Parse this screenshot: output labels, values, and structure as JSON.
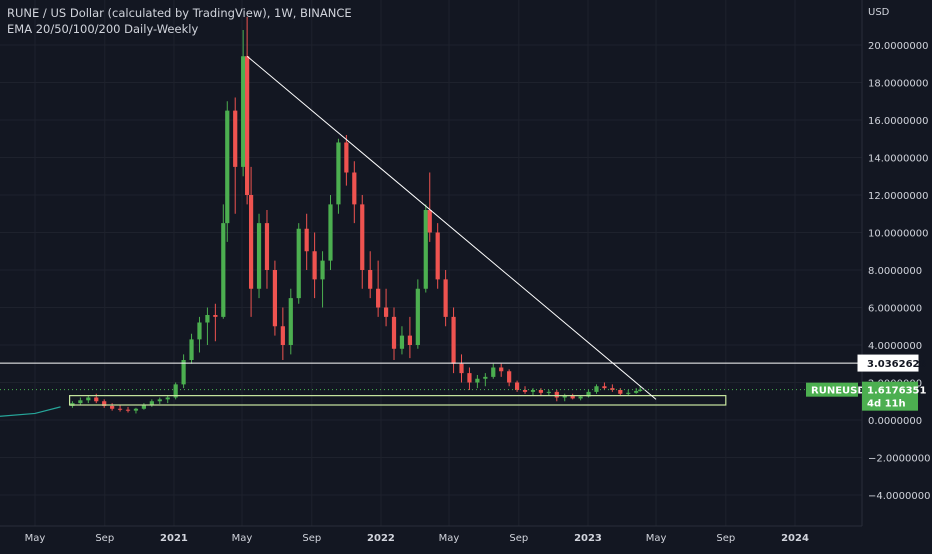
{
  "header": {
    "title": "RUNE / US Dollar (calculated by TradingView), 1W, BINANCE",
    "indicator": "EMA 20/50/100/200 Daily-Weekly"
  },
  "colors": {
    "background": "#131722",
    "grid": "#1e222d",
    "up": "#26a69a",
    "up_candle": "#4caf50",
    "down": "#ef5350",
    "trendline": "#ffffff",
    "support_box": "#c8e6a0",
    "price_tag": "#4caf50"
  },
  "chart_data": {
    "type": "candlestick",
    "symbol": "RUNEUSD",
    "interval": "1W",
    "y_axis": {
      "unit": "USD",
      "ylim": [
        -5.2,
        21.7
      ],
      "ticks": [
        "20.0000000",
        "18.0000000",
        "16.0000000",
        "14.0000000",
        "12.0000000",
        "10.0000000",
        "8.0000000",
        "6.0000000",
        "4.0000000",
        "2.0000000",
        "0.0000000",
        "−2.0000000",
        "−4.0000000"
      ],
      "tick_values": [
        20,
        18,
        16,
        14,
        12,
        10,
        8,
        6,
        4,
        2,
        0,
        -2,
        -4
      ]
    },
    "x_axis": {
      "ticks": [
        "May",
        "Sep",
        "2021",
        "May",
        "Sep",
        "2022",
        "May",
        "Sep",
        "2023",
        "May",
        "Sep",
        "2024"
      ],
      "tick_dates": [
        "2020-05-01",
        "2020-09-01",
        "2021-01-01",
        "2021-05-01",
        "2021-09-01",
        "2022-01-01",
        "2022-05-01",
        "2022-09-01",
        "2023-01-01",
        "2023-05-01",
        "2023-09-01",
        "2024-01-01"
      ],
      "bold_ticks": [
        "2021",
        "2022",
        "2023",
        "2024"
      ],
      "range": [
        "2020-04-01",
        "2024-06-15"
      ]
    },
    "grid": true,
    "horizontal_level": {
      "value": 3.0362626,
      "label": "3.0362626"
    },
    "current_price": {
      "value": 1.6176351,
      "label": "1.6176351",
      "symbol": "RUNEUSD",
      "countdown": "4d 11h"
    },
    "trendline": {
      "start": {
        "date": "2021-05-10",
        "value": 19.4
      },
      "end": {
        "date": "2023-05-01",
        "value": 1.1
      }
    },
    "support_zone": {
      "x_start": "2020-07-01",
      "x_end": "2023-09-01",
      "y_low": 0.8,
      "y_high": 1.3
    },
    "line_segment": [
      {
        "date": "2019-12-15",
        "value": 0.1
      },
      {
        "date": "2020-03-01",
        "value": 0.2
      },
      {
        "date": "2020-05-01",
        "value": 0.35
      },
      {
        "date": "2020-06-15",
        "value": 0.7
      }
    ],
    "candles": [
      {
        "date": "2020-07-06",
        "o": 0.75,
        "h": 1.0,
        "l": 0.65,
        "c": 0.9
      },
      {
        "date": "2020-07-20",
        "o": 0.9,
        "h": 1.2,
        "l": 0.8,
        "c": 1.05
      },
      {
        "date": "2020-08-03",
        "o": 1.05,
        "h": 1.3,
        "l": 0.9,
        "c": 1.2
      },
      {
        "date": "2020-08-17",
        "o": 1.2,
        "h": 1.4,
        "l": 0.9,
        "c": 1.0
      },
      {
        "date": "2020-08-31",
        "o": 1.0,
        "h": 1.1,
        "l": 0.65,
        "c": 0.75
      },
      {
        "date": "2020-09-14",
        "o": 0.75,
        "h": 0.9,
        "l": 0.5,
        "c": 0.6
      },
      {
        "date": "2020-09-28",
        "o": 0.6,
        "h": 0.8,
        "l": 0.45,
        "c": 0.55
      },
      {
        "date": "2020-10-12",
        "o": 0.55,
        "h": 0.7,
        "l": 0.4,
        "c": 0.5
      },
      {
        "date": "2020-10-26",
        "o": 0.5,
        "h": 0.65,
        "l": 0.35,
        "c": 0.6
      },
      {
        "date": "2020-11-09",
        "o": 0.6,
        "h": 0.9,
        "l": 0.55,
        "c": 0.8
      },
      {
        "date": "2020-11-23",
        "o": 0.8,
        "h": 1.1,
        "l": 0.7,
        "c": 1.0
      },
      {
        "date": "2020-12-07",
        "o": 1.0,
        "h": 1.2,
        "l": 0.85,
        "c": 1.1
      },
      {
        "date": "2020-12-21",
        "o": 1.1,
        "h": 1.3,
        "l": 0.9,
        "c": 1.2
      },
      {
        "date": "2021-01-04",
        "o": 1.2,
        "h": 2.0,
        "l": 1.1,
        "c": 1.9
      },
      {
        "date": "2021-01-18",
        "o": 1.9,
        "h": 3.5,
        "l": 1.7,
        "c": 3.2
      },
      {
        "date": "2021-02-01",
        "o": 3.2,
        "h": 4.6,
        "l": 3.0,
        "c": 4.3
      },
      {
        "date": "2021-02-15",
        "o": 4.3,
        "h": 5.5,
        "l": 3.6,
        "c": 5.2
      },
      {
        "date": "2021-03-01",
        "o": 5.2,
        "h": 6.0,
        "l": 4.0,
        "c": 5.6
      },
      {
        "date": "2021-03-15",
        "o": 5.6,
        "h": 6.2,
        "l": 4.2,
        "c": 5.5
      },
      {
        "date": "2021-03-29",
        "o": 5.5,
        "h": 11.5,
        "l": 5.4,
        "c": 10.5
      },
      {
        "date": "2021-04-05",
        "o": 10.5,
        "h": 17.0,
        "l": 9.5,
        "c": 16.5
      },
      {
        "date": "2021-04-19",
        "o": 16.5,
        "h": 17.2,
        "l": 11.0,
        "c": 13.5
      },
      {
        "date": "2021-05-03",
        "o": 13.5,
        "h": 20.8,
        "l": 13.0,
        "c": 19.4
      },
      {
        "date": "2021-05-10",
        "o": 19.4,
        "h": 21.5,
        "l": 11.5,
        "c": 12.0
      },
      {
        "date": "2021-05-17",
        "o": 12.0,
        "h": 13.5,
        "l": 5.5,
        "c": 7.0
      },
      {
        "date": "2021-05-31",
        "o": 7.0,
        "h": 11.0,
        "l": 6.5,
        "c": 10.5
      },
      {
        "date": "2021-06-14",
        "o": 10.5,
        "h": 11.2,
        "l": 7.0,
        "c": 8.0
      },
      {
        "date": "2021-06-28",
        "o": 8.0,
        "h": 8.5,
        "l": 4.5,
        "c": 5.0
      },
      {
        "date": "2021-07-12",
        "o": 5.0,
        "h": 6.0,
        "l": 3.2,
        "c": 4.0
      },
      {
        "date": "2021-07-26",
        "o": 4.0,
        "h": 7.0,
        "l": 3.5,
        "c": 6.5
      },
      {
        "date": "2021-08-09",
        "o": 6.5,
        "h": 10.5,
        "l": 6.2,
        "c": 10.2
      },
      {
        "date": "2021-08-23",
        "o": 10.2,
        "h": 11.0,
        "l": 8.0,
        "c": 9.0
      },
      {
        "date": "2021-09-06",
        "o": 9.0,
        "h": 10.0,
        "l": 6.5,
        "c": 7.5
      },
      {
        "date": "2021-09-20",
        "o": 7.5,
        "h": 9.0,
        "l": 6.0,
        "c": 8.5
      },
      {
        "date": "2021-10-04",
        "o": 8.5,
        "h": 12.0,
        "l": 8.0,
        "c": 11.5
      },
      {
        "date": "2021-10-18",
        "o": 11.5,
        "h": 15.0,
        "l": 11.0,
        "c": 14.8
      },
      {
        "date": "2021-11-01",
        "o": 14.8,
        "h": 15.2,
        "l": 12.5,
        "c": 13.2
      },
      {
        "date": "2021-11-15",
        "o": 13.2,
        "h": 13.8,
        "l": 10.5,
        "c": 11.5
      },
      {
        "date": "2021-11-29",
        "o": 11.5,
        "h": 12.0,
        "l": 7.0,
        "c": 8.0
      },
      {
        "date": "2021-12-13",
        "o": 8.0,
        "h": 9.0,
        "l": 6.5,
        "c": 7.0
      },
      {
        "date": "2021-12-27",
        "o": 7.0,
        "h": 8.5,
        "l": 5.5,
        "c": 6.0
      },
      {
        "date": "2022-01-10",
        "o": 6.0,
        "h": 7.0,
        "l": 5.0,
        "c": 5.5
      },
      {
        "date": "2022-01-24",
        "o": 5.5,
        "h": 6.0,
        "l": 3.2,
        "c": 3.8
      },
      {
        "date": "2022-02-07",
        "o": 3.8,
        "h": 5.0,
        "l": 3.5,
        "c": 4.5
      },
      {
        "date": "2022-02-21",
        "o": 4.5,
        "h": 5.5,
        "l": 3.3,
        "c": 4.0
      },
      {
        "date": "2022-03-07",
        "o": 4.0,
        "h": 7.5,
        "l": 3.8,
        "c": 7.0
      },
      {
        "date": "2022-03-21",
        "o": 7.0,
        "h": 11.5,
        "l": 6.8,
        "c": 11.2
      },
      {
        "date": "2022-03-28",
        "o": 11.2,
        "h": 13.2,
        "l": 9.5,
        "c": 10.0
      },
      {
        "date": "2022-04-11",
        "o": 10.0,
        "h": 10.5,
        "l": 7.0,
        "c": 7.5
      },
      {
        "date": "2022-04-25",
        "o": 7.5,
        "h": 8.0,
        "l": 5.0,
        "c": 5.5
      },
      {
        "date": "2022-05-09",
        "o": 5.5,
        "h": 6.0,
        "l": 2.5,
        "c": 3.0
      },
      {
        "date": "2022-05-23",
        "o": 3.0,
        "h": 3.5,
        "l": 2.0,
        "c": 2.5
      },
      {
        "date": "2022-06-06",
        "o": 2.5,
        "h": 2.8,
        "l": 1.6,
        "c": 2.0
      },
      {
        "date": "2022-06-20",
        "o": 2.0,
        "h": 2.4,
        "l": 1.7,
        "c": 2.2
      },
      {
        "date": "2022-07-04",
        "o": 2.2,
        "h": 2.5,
        "l": 1.8,
        "c": 2.3
      },
      {
        "date": "2022-07-18",
        "o": 2.3,
        "h": 3.0,
        "l": 2.2,
        "c": 2.8
      },
      {
        "date": "2022-08-01",
        "o": 2.8,
        "h": 3.0,
        "l": 2.3,
        "c": 2.6
      },
      {
        "date": "2022-08-15",
        "o": 2.6,
        "h": 2.7,
        "l": 1.8,
        "c": 2.0
      },
      {
        "date": "2022-08-29",
        "o": 2.0,
        "h": 2.1,
        "l": 1.5,
        "c": 1.6
      },
      {
        "date": "2022-09-12",
        "o": 1.6,
        "h": 1.8,
        "l": 1.4,
        "c": 1.5
      },
      {
        "date": "2022-09-26",
        "o": 1.5,
        "h": 1.7,
        "l": 1.3,
        "c": 1.6
      },
      {
        "date": "2022-10-10",
        "o": 1.6,
        "h": 1.7,
        "l": 1.3,
        "c": 1.45
      },
      {
        "date": "2022-10-24",
        "o": 1.45,
        "h": 1.6,
        "l": 1.3,
        "c": 1.5
      },
      {
        "date": "2022-11-07",
        "o": 1.5,
        "h": 1.6,
        "l": 1.0,
        "c": 1.2
      },
      {
        "date": "2022-11-21",
        "o": 1.2,
        "h": 1.4,
        "l": 1.0,
        "c": 1.3
      },
      {
        "date": "2022-12-05",
        "o": 1.3,
        "h": 1.4,
        "l": 1.1,
        "c": 1.15
      },
      {
        "date": "2022-12-19",
        "o": 1.15,
        "h": 1.3,
        "l": 1.05,
        "c": 1.25
      },
      {
        "date": "2023-01-02",
        "o": 1.25,
        "h": 1.6,
        "l": 1.2,
        "c": 1.5
      },
      {
        "date": "2023-01-16",
        "o": 1.5,
        "h": 1.9,
        "l": 1.4,
        "c": 1.8
      },
      {
        "date": "2023-01-30",
        "o": 1.8,
        "h": 2.0,
        "l": 1.6,
        "c": 1.7
      },
      {
        "date": "2023-02-13",
        "o": 1.7,
        "h": 1.9,
        "l": 1.5,
        "c": 1.6
      },
      {
        "date": "2023-02-27",
        "o": 1.6,
        "h": 1.7,
        "l": 1.3,
        "c": 1.4
      },
      {
        "date": "2023-03-13",
        "o": 1.4,
        "h": 1.6,
        "l": 1.3,
        "c": 1.45
      },
      {
        "date": "2023-03-27",
        "o": 1.45,
        "h": 1.7,
        "l": 1.4,
        "c": 1.55
      },
      {
        "date": "2023-04-03",
        "o": 1.55,
        "h": 1.8,
        "l": 1.5,
        "c": 1.62
      }
    ]
  }
}
